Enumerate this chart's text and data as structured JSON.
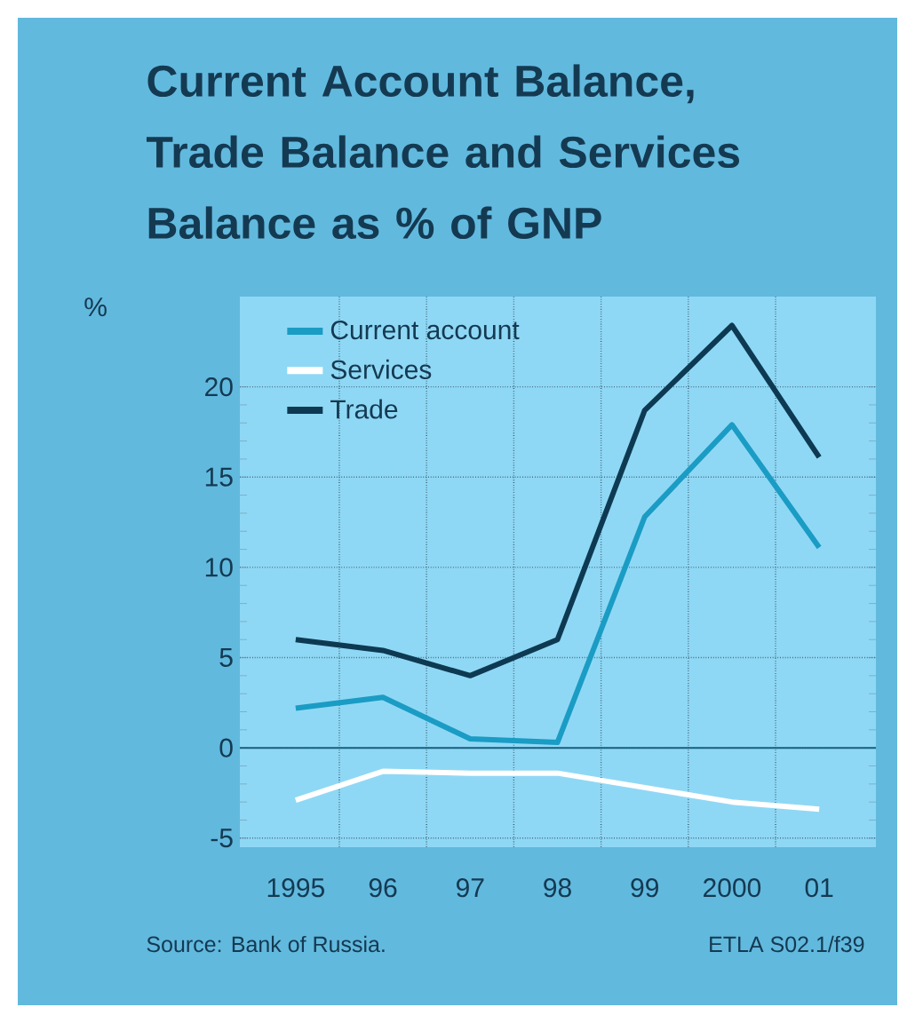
{
  "chart_data": {
    "type": "line",
    "title": "Current Account Balance, Trade Balance and Services Balance as % of GNP",
    "ylabel": "%",
    "categories": [
      "1995",
      "96",
      "97",
      "98",
      "99",
      "2000",
      "01"
    ],
    "series": [
      {
        "name": "Current account",
        "color": "#1a9cc4",
        "values": [
          2.2,
          2.8,
          0.5,
          0.3,
          12.8,
          17.9,
          11.1
        ]
      },
      {
        "name": "Services",
        "color": "#ffffff",
        "values": [
          -2.9,
          -1.3,
          -1.4,
          -1.4,
          -2.2,
          -3.0,
          -3.4
        ]
      },
      {
        "name": "Trade",
        "color": "#0d3a52",
        "values": [
          6.0,
          5.4,
          4.0,
          6.0,
          18.7,
          23.4,
          16.1
        ]
      }
    ],
    "ylim": [
      -5.5,
      25
    ],
    "yticks": [
      -5,
      0,
      5,
      10,
      15,
      20
    ],
    "ref_lines": [
      {
        "axis": "y",
        "value": 0,
        "color": "#1a5f80"
      }
    ],
    "grid": true,
    "legend": "top left",
    "marker": "none",
    "line_style": "solid",
    "annotations": [
      "Source:   Bank of Russia.",
      "ETLA S02.1/f39"
    ]
  }
}
